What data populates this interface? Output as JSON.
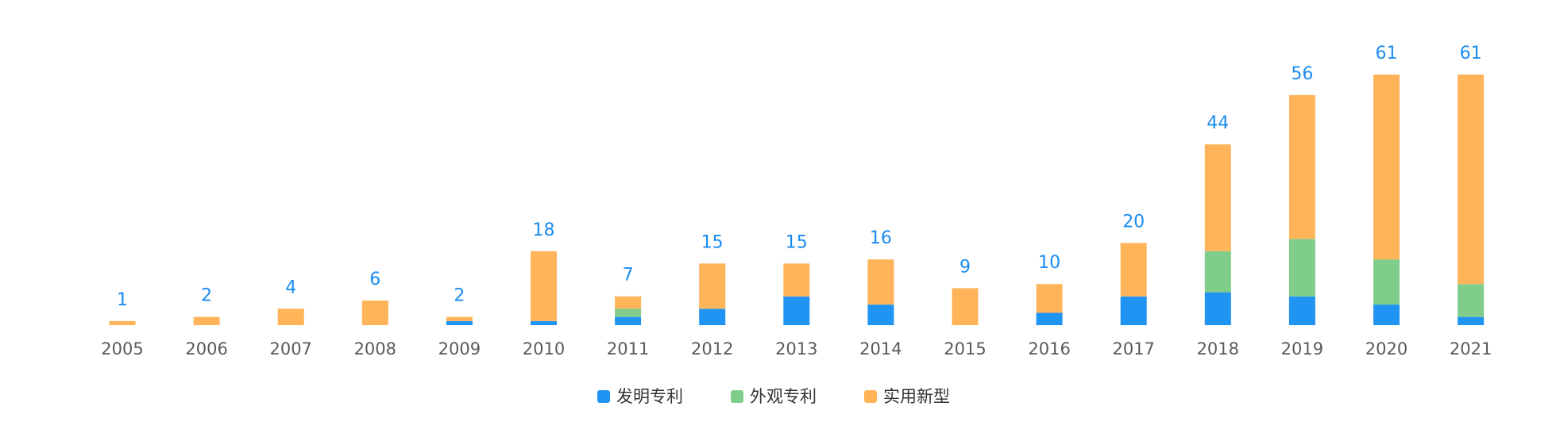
{
  "chart_data": {
    "type": "stacked-bar",
    "categories": [
      "2005",
      "2006",
      "2007",
      "2008",
      "2009",
      "2010",
      "2011",
      "2012",
      "2013",
      "2014",
      "2015",
      "2016",
      "2017",
      "2018",
      "2019",
      "2020",
      "2021"
    ],
    "series": [
      {
        "name": "发明专利",
        "color": "#2094f3",
        "values": [
          0,
          0,
          0,
          0,
          1,
          1,
          2,
          4,
          7,
          5,
          0,
          3,
          7,
          8,
          7,
          5,
          2
        ]
      },
      {
        "name": "外观专利",
        "color": "#7ecd8a",
        "values": [
          0,
          0,
          0,
          0,
          0,
          0,
          2,
          0,
          0,
          0,
          0,
          0,
          0,
          10,
          14,
          11,
          8
        ]
      },
      {
        "name": "实用新型",
        "color": "#ffb459",
        "values": [
          1,
          2,
          4,
          6,
          1,
          17,
          3,
          11,
          8,
          11,
          9,
          7,
          13,
          26,
          35,
          45,
          51
        ]
      }
    ],
    "totals": [
      1,
      2,
      4,
      6,
      2,
      18,
      7,
      15,
      15,
      16,
      9,
      10,
      20,
      44,
      56,
      61,
      61
    ]
  }
}
